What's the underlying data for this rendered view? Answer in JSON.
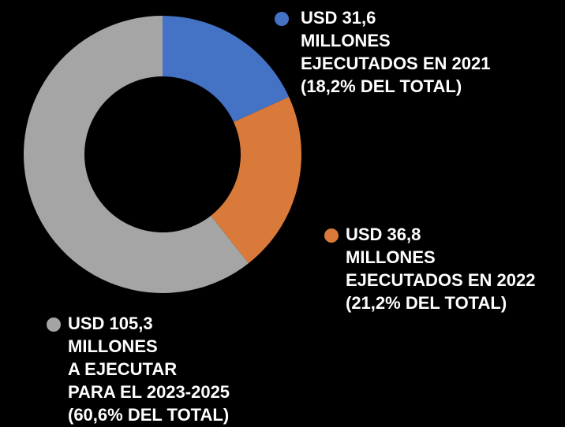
{
  "chart_data": {
    "type": "pie",
    "donut": true,
    "values": [
      31.6,
      36.8,
      105.3
    ],
    "value_labels": [
      "USD 31,6",
      "USD 36,8",
      "USD 105,3"
    ],
    "categories": [
      [
        "MILLONES",
        "EJECUTADOS EN 2021"
      ],
      [
        "MILLONES",
        "EJECUTADOS EN 2022"
      ],
      [
        "MILLONES",
        "A EJECUTAR",
        "PARA EL 2023-2025"
      ]
    ],
    "percents": [
      18.2,
      21.2,
      60.6
    ],
    "percent_labels": [
      "(18,2% DEL TOTAL)",
      "(21,2% DEL TOTAL)",
      "(60,6% DEL TOTAL)"
    ],
    "colors": [
      "#4472c4",
      "#d97a3a",
      "#a5a5a5"
    ]
  }
}
